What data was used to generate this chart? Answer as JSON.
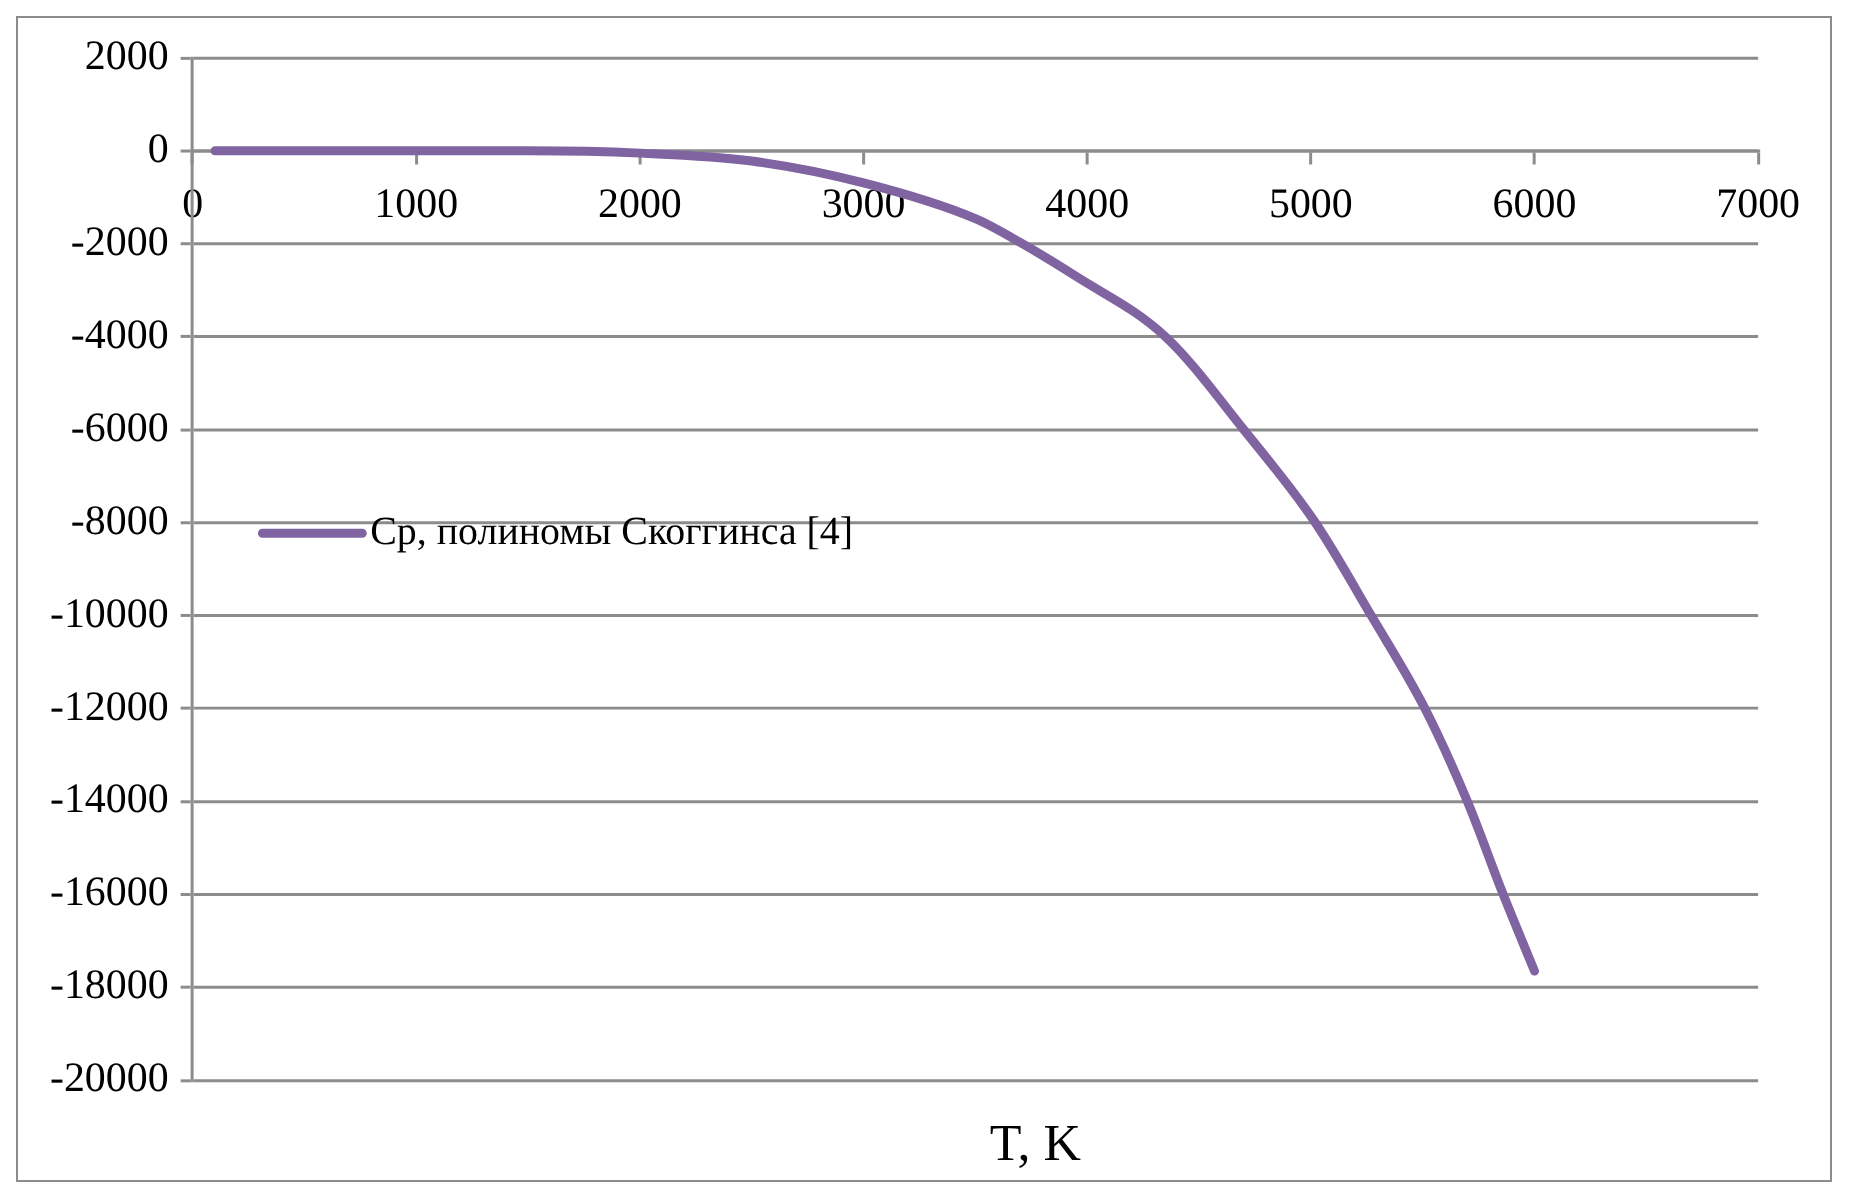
{
  "chart_data": {
    "type": "line",
    "xlabel": "T, K",
    "x": [
      100,
      500,
      1000,
      1500,
      2000,
      2500,
      3000,
      3500,
      3700,
      3950,
      4350,
      4700,
      5020,
      5270,
      5510,
      5700,
      5860,
      6000
    ],
    "series": [
      {
        "name": "Cp, полиномы Скоггинса [4]",
        "color": "#8064a2",
        "values": [
          0,
          0,
          0,
          0,
          -50,
          -220,
          -690,
          -1460,
          -1970,
          -2700,
          -4000,
          -6000,
          -8000,
          -10000,
          -12000,
          -14000,
          -16000,
          -17650
        ]
      }
    ],
    "xlim": [
      0,
      7000
    ],
    "xticks": [
      0,
      1000,
      2000,
      3000,
      4000,
      5000,
      6000,
      7000
    ],
    "ylim": [
      -20000,
      2000
    ],
    "yticks": [
      2000,
      0,
      -2000,
      -4000,
      -6000,
      -8000,
      -10000,
      -12000,
      -14000,
      -16000,
      -18000,
      -20000
    ],
    "grid": "y",
    "legend": "left",
    "marker": "none",
    "line_style": "solid"
  }
}
